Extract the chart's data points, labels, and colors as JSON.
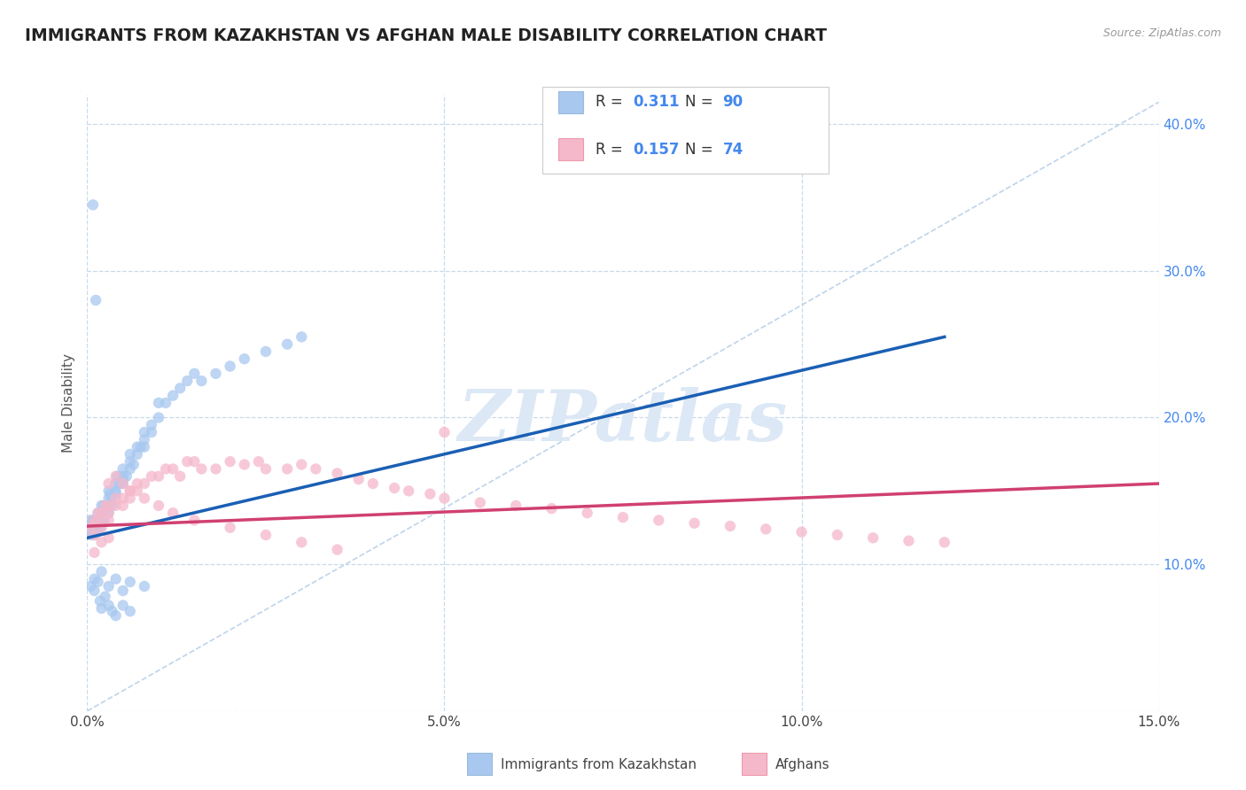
{
  "title": "IMMIGRANTS FROM KAZAKHSTAN VS AFGHAN MALE DISABILITY CORRELATION CHART",
  "source": "Source: ZipAtlas.com",
  "ylabel": "Male Disability",
  "xmin": 0.0,
  "xmax": 0.15,
  "ymin": 0.0,
  "ymax": 0.42,
  "yticks": [
    0.0,
    0.1,
    0.2,
    0.3,
    0.4
  ],
  "ytick_labels": [
    "",
    "10.0%",
    "20.0%",
    "30.0%",
    "40.0%"
  ],
  "xticks": [
    0.0,
    0.05,
    0.1,
    0.15
  ],
  "xtick_labels": [
    "0.0%",
    "5.0%",
    "10.0%",
    "15.0%"
  ],
  "series1_name": "Immigrants from Kazakhstan",
  "series1_color": "#a8c8f0",
  "series1_R": "0.311",
  "series1_N": "90",
  "series2_name": "Afghans",
  "series2_color": "#f5b8cb",
  "series2_R": "0.157",
  "series2_N": "74",
  "trend1_color": "#1a5fb4",
  "trend2_color": "#d04070",
  "diag_color": "#b8cfe8",
  "watermark": "ZIPatlas",
  "watermark_color": "#dce8f5",
  "background_color": "#ffffff",
  "title_color": "#222222",
  "title_fontsize": 13.5,
  "axis_label_color": "#555555",
  "tick_color_right": "#4488ee",
  "legend_num_color": "#4488ee",
  "grid_color": "#c8daea",
  "series1_x": [
    0.0003,
    0.0004,
    0.0005,
    0.0006,
    0.0007,
    0.0008,
    0.0009,
    0.001,
    0.001,
    0.001,
    0.0012,
    0.0013,
    0.0014,
    0.0015,
    0.0015,
    0.0016,
    0.0017,
    0.0018,
    0.002,
    0.002,
    0.002,
    0.002,
    0.0022,
    0.0023,
    0.0024,
    0.0025,
    0.003,
    0.003,
    0.003,
    0.003,
    0.003,
    0.0032,
    0.0034,
    0.0035,
    0.004,
    0.004,
    0.004,
    0.0042,
    0.0045,
    0.005,
    0.005,
    0.005,
    0.005,
    0.0055,
    0.006,
    0.006,
    0.006,
    0.0065,
    0.007,
    0.007,
    0.0075,
    0.008,
    0.008,
    0.008,
    0.009,
    0.009,
    0.01,
    0.01,
    0.011,
    0.012,
    0.013,
    0.014,
    0.015,
    0.016,
    0.018,
    0.02,
    0.022,
    0.025,
    0.028,
    0.03,
    0.0005,
    0.001,
    0.001,
    0.0015,
    0.002,
    0.003,
    0.004,
    0.005,
    0.006,
    0.008,
    0.0008,
    0.0012,
    0.0018,
    0.002,
    0.0025,
    0.003,
    0.0035,
    0.004,
    0.005,
    0.006
  ],
  "series1_y": [
    0.125,
    0.13,
    0.12,
    0.128,
    0.122,
    0.13,
    0.125,
    0.12,
    0.125,
    0.13,
    0.122,
    0.128,
    0.125,
    0.13,
    0.135,
    0.128,
    0.13,
    0.125,
    0.13,
    0.135,
    0.14,
    0.128,
    0.135,
    0.14,
    0.13,
    0.138,
    0.14,
    0.145,
    0.135,
    0.15,
    0.14,
    0.148,
    0.145,
    0.14,
    0.15,
    0.155,
    0.148,
    0.16,
    0.155,
    0.155,
    0.16,
    0.165,
    0.158,
    0.16,
    0.165,
    0.17,
    0.175,
    0.168,
    0.175,
    0.18,
    0.18,
    0.185,
    0.19,
    0.18,
    0.19,
    0.195,
    0.2,
    0.21,
    0.21,
    0.215,
    0.22,
    0.225,
    0.23,
    0.225,
    0.23,
    0.235,
    0.24,
    0.245,
    0.25,
    0.255,
    0.085,
    0.09,
    0.082,
    0.088,
    0.095,
    0.085,
    0.09,
    0.082,
    0.088,
    0.085,
    0.345,
    0.28,
    0.075,
    0.07,
    0.078,
    0.072,
    0.068,
    0.065,
    0.072,
    0.068
  ],
  "series2_x": [
    0.0005,
    0.001,
    0.001,
    0.001,
    0.0015,
    0.002,
    0.002,
    0.002,
    0.0025,
    0.003,
    0.003,
    0.003,
    0.004,
    0.004,
    0.005,
    0.005,
    0.006,
    0.006,
    0.007,
    0.007,
    0.008,
    0.009,
    0.01,
    0.011,
    0.012,
    0.013,
    0.014,
    0.015,
    0.016,
    0.018,
    0.02,
    0.022,
    0.024,
    0.025,
    0.028,
    0.03,
    0.032,
    0.035,
    0.038,
    0.04,
    0.043,
    0.045,
    0.048,
    0.05,
    0.055,
    0.06,
    0.065,
    0.07,
    0.075,
    0.08,
    0.085,
    0.09,
    0.095,
    0.1,
    0.105,
    0.11,
    0.115,
    0.12,
    0.003,
    0.004,
    0.005,
    0.006,
    0.008,
    0.01,
    0.012,
    0.015,
    0.02,
    0.025,
    0.03,
    0.035,
    0.001,
    0.002,
    0.003,
    0.05
  ],
  "series2_y": [
    0.125,
    0.13,
    0.12,
    0.128,
    0.135,
    0.13,
    0.125,
    0.135,
    0.14,
    0.135,
    0.13,
    0.14,
    0.145,
    0.14,
    0.145,
    0.14,
    0.15,
    0.145,
    0.15,
    0.155,
    0.155,
    0.16,
    0.16,
    0.165,
    0.165,
    0.16,
    0.17,
    0.17,
    0.165,
    0.165,
    0.17,
    0.168,
    0.17,
    0.165,
    0.165,
    0.168,
    0.165,
    0.162,
    0.158,
    0.155,
    0.152,
    0.15,
    0.148,
    0.145,
    0.142,
    0.14,
    0.138,
    0.135,
    0.132,
    0.13,
    0.128,
    0.126,
    0.124,
    0.122,
    0.12,
    0.118,
    0.116,
    0.115,
    0.155,
    0.16,
    0.155,
    0.15,
    0.145,
    0.14,
    0.135,
    0.13,
    0.125,
    0.12,
    0.115,
    0.11,
    0.108,
    0.115,
    0.118,
    0.19
  ],
  "trend1_x0": 0.0,
  "trend1_y0": 0.118,
  "trend1_x1": 0.12,
  "trend1_y1": 0.255,
  "trend2_x0": 0.0,
  "trend2_y0": 0.126,
  "trend2_x1": 0.15,
  "trend2_y1": 0.155
}
